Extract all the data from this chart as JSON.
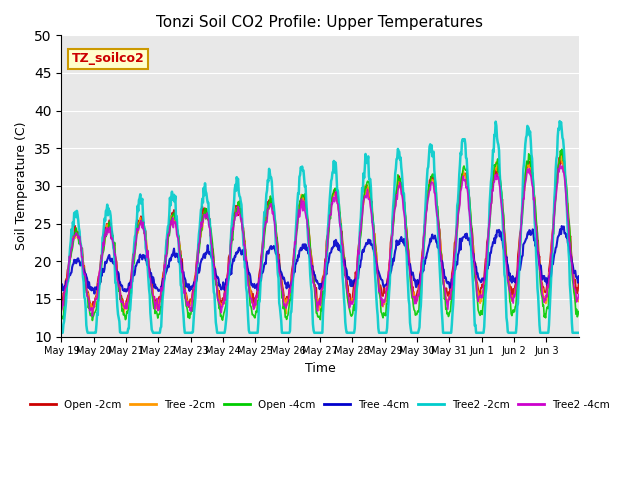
{
  "title": "Tonzi Soil CO2 Profile: Upper Temperatures",
  "xlabel": "Time",
  "ylabel": "Soil Temperature (C)",
  "ylim": [
    10,
    50
  ],
  "yticks": [
    10,
    15,
    20,
    25,
    30,
    35,
    40,
    45,
    50
  ],
  "plot_bg_color": "#e8e8e8",
  "series": [
    {
      "label": "Open -2cm",
      "color": "#cc0000"
    },
    {
      "label": "Tree -2cm",
      "color": "#ff9900"
    },
    {
      "label": "Open -4cm",
      "color": "#00cc00"
    },
    {
      "label": "Tree -4cm",
      "color": "#0000cc"
    },
    {
      "label": "Tree2 -2cm",
      "color": "#00cccc"
    },
    {
      "label": "Tree2 -4cm",
      "color": "#cc00cc"
    }
  ],
  "xtick_labels": [
    "May 19",
    "May 20",
    "May 21",
    "May 22",
    "May 23",
    "May 24",
    "May 25",
    "May 26",
    "May 27",
    "May 28",
    "May 29",
    "May 30",
    "May 31",
    "Jun 1",
    "Jun 2",
    "Jun 3"
  ],
  "annotation_text": "TZ_soilco2",
  "annotation_color": "#cc0000",
  "annotation_bg": "#ffffcc",
  "annotation_border": "#cc9900"
}
